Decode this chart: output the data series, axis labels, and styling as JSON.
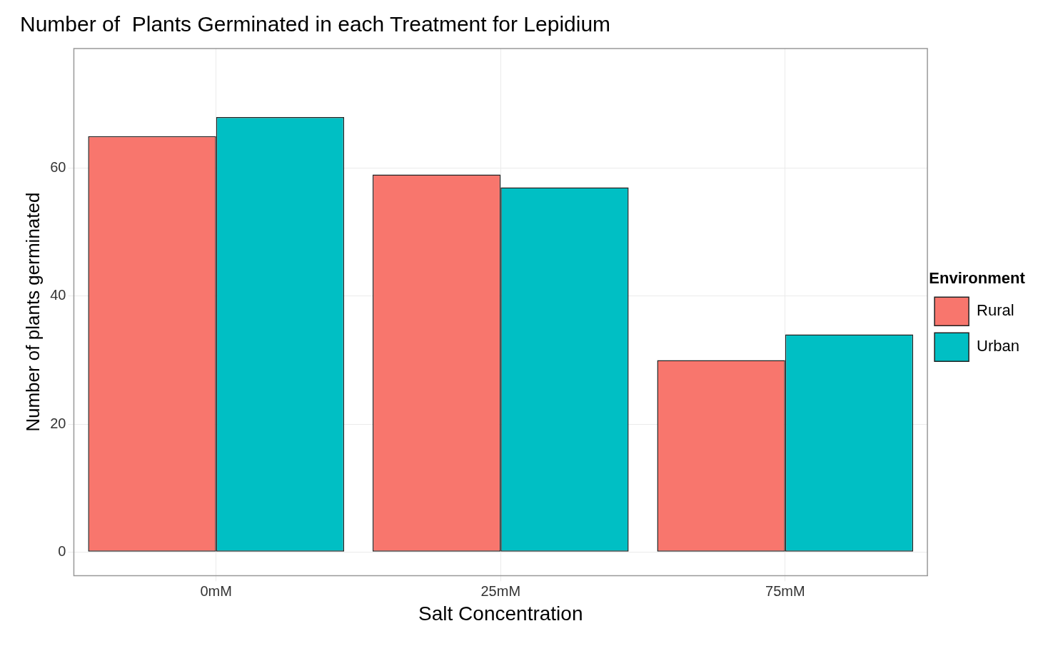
{
  "chart_data": {
    "type": "bar",
    "title": "Number of  Plants Germinated in each Treatment for Lepidium",
    "xlabel": "Salt Concentration",
    "ylabel": "Number of plants germinated",
    "legend_title": "Environment",
    "categories": [
      "0mM",
      "25mM",
      "75mM"
    ],
    "series": [
      {
        "name": "Rural",
        "color": "#f8766d",
        "values": [
          65,
          59,
          30
        ]
      },
      {
        "name": "Urban",
        "color": "#00bfc4",
        "values": [
          68,
          57,
          34
        ]
      }
    ],
    "ylim": [
      -3.7,
      78.7
    ],
    "yticks": [
      0,
      20,
      40,
      60
    ],
    "grid": true,
    "legend": "right"
  }
}
